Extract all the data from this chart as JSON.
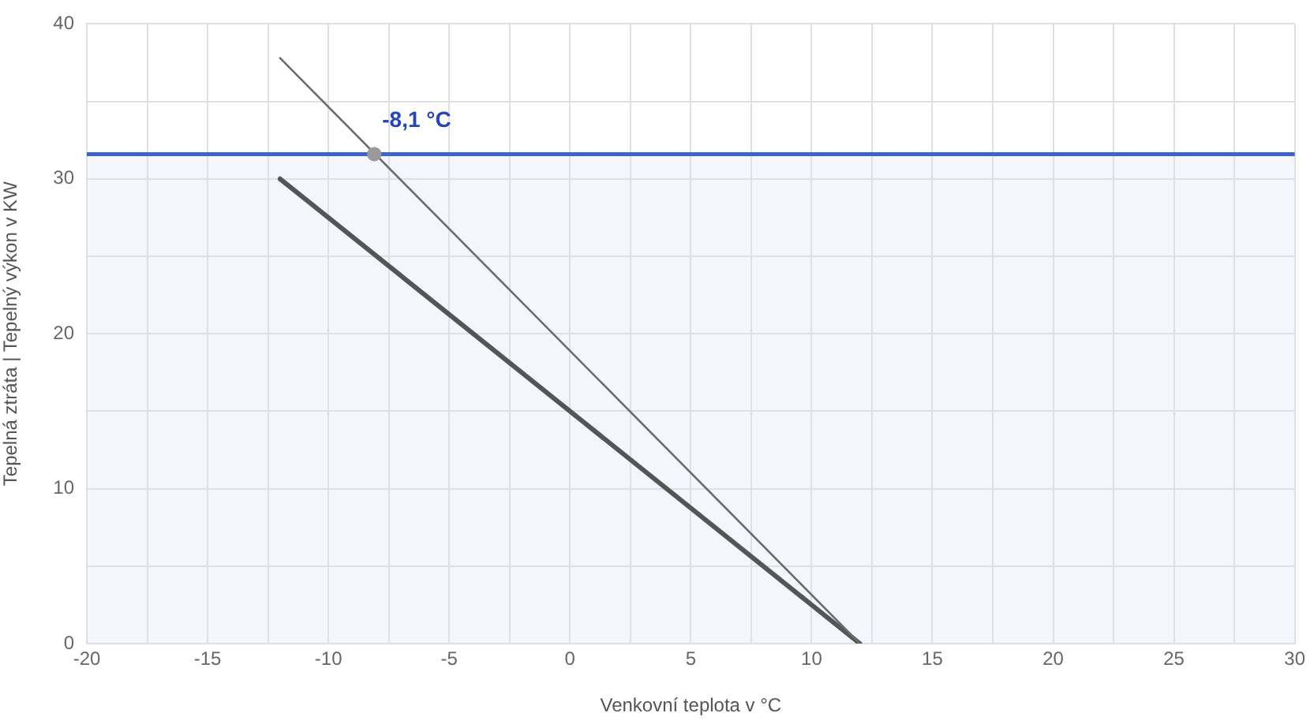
{
  "chart_data": {
    "type": "line",
    "xlabel": "Venkovní teplota v °C",
    "ylabel": "Tepelná ztráta | Tepelný výkon v KW",
    "xlim": [
      -20,
      30
    ],
    "ylim": [
      0,
      40
    ],
    "xticks": [
      -20,
      {
        "value": -17.5,
        "label": null
      },
      -15,
      {
        "value": -12.5,
        "label": null
      },
      -10,
      {
        "value": -7.5,
        "label": null
      },
      -5,
      {
        "value": -2.5,
        "label": null
      },
      0,
      {
        "value": 2.5,
        "label": null
      },
      5,
      {
        "value": 7.5,
        "label": null
      },
      10,
      {
        "value": 12.5,
        "label": null
      },
      15,
      {
        "value": 17.5,
        "label": null
      },
      20,
      {
        "value": 22.5,
        "label": null
      },
      25,
      {
        "value": 27.5,
        "label": null
      },
      30
    ],
    "yticks": [
      0,
      {
        "value": 5,
        "label": null
      },
      10,
      {
        "value": 15,
        "label": null
      },
      20,
      {
        "value": 25,
        "label": null
      },
      30,
      {
        "value": 35,
        "label": null
      },
      40
    ],
    "grid": true,
    "marker": "none",
    "line_style": "solid",
    "series": [
      {
        "x": [
          -12,
          12
        ],
        "values": [
          37.8,
          0
        ],
        "color": "#6b6b6b"
      },
      {
        "x": [
          -12,
          12
        ],
        "values": [
          30,
          0
        ],
        "color": "#555555"
      },
      {
        "type": "scatter",
        "x": [
          -8.1
        ],
        "values": [
          31.6
        ],
        "color": "#9a9a9a",
        "marker": "circle"
      }
    ],
    "ref_lines": [
      {
        "axis": "y",
        "value": 31.6,
        "color": "#3d63c9"
      }
    ],
    "bands": [
      {
        "axis": "y",
        "from": 0,
        "to": 31.6,
        "color": "#f3f7fc"
      }
    ],
    "annotations": [
      {
        "text": "-8,1 °C",
        "x": -8.1,
        "y": 31.6
      }
    ]
  }
}
